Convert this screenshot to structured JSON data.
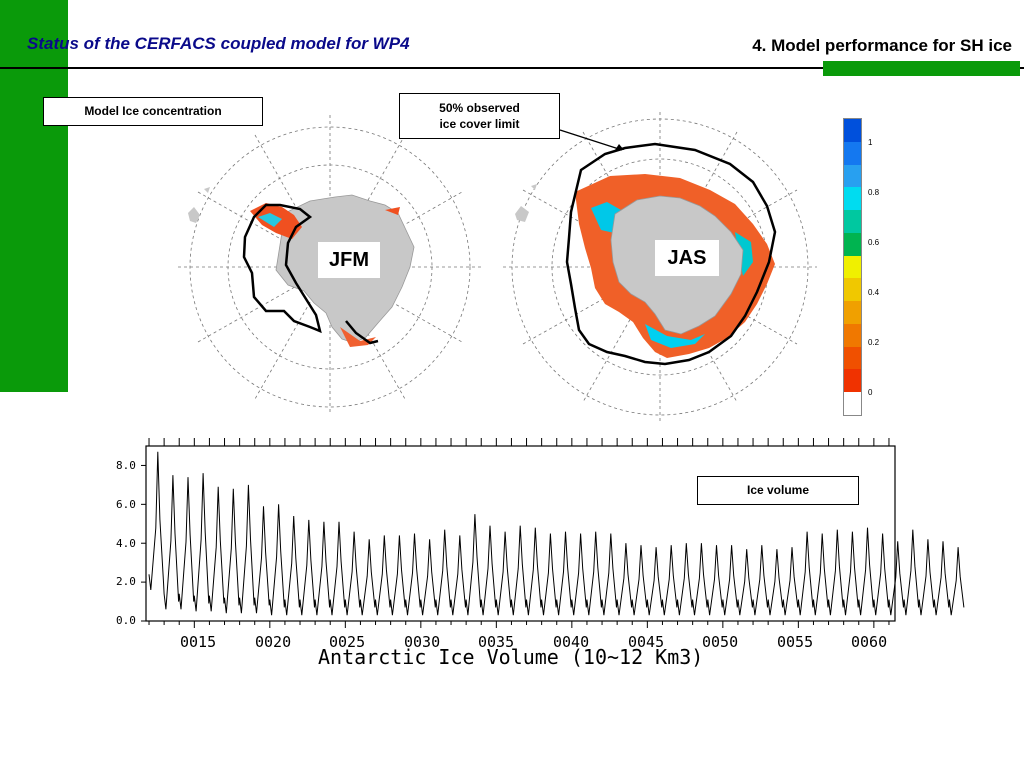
{
  "header": {
    "title": "Status of the CERFACS coupled model for WP4",
    "section": "4. Model performance for SH ice"
  },
  "maps": {
    "panel_label": "Model Ice concentration",
    "annotation_line1": "50% observed",
    "annotation_line2": "ice cover limit",
    "left_season": "JFM",
    "right_season": "JAS"
  },
  "colorbar": {
    "colors": [
      "#0050dc",
      "#1478f0",
      "#28a0f0",
      "#00dcf0",
      "#00c8a0",
      "#00b450",
      "#f0f000",
      "#f0c800",
      "#f0a000",
      "#f07800",
      "#f05000",
      "#f03200",
      "#ffffff"
    ],
    "tick_labels": [
      "1",
      "0.8",
      "0.6",
      "0.4",
      "0.2",
      "0"
    ]
  },
  "chart_data": {
    "type": "line",
    "title": "",
    "xlabel": "Antarctic Ice Volume (10~12 Km3)",
    "ylabel": "",
    "legend_label": "Ice volume",
    "x_tick_labels": [
      "0015",
      "0020",
      "0025",
      "0030",
      "0035",
      "0040",
      "0045",
      "0050",
      "0055",
      "0060"
    ],
    "y_tick_labels": [
      "0.0",
      "2.0",
      "4.0",
      "6.0",
      "8.0"
    ],
    "xlim": [
      11.8,
      61.4
    ],
    "ylim": [
      0,
      9
    ],
    "x_start_year": 12,
    "annual_max": [
      8.7,
      7.5,
      7.4,
      7.6,
      6.9,
      6.8,
      7.0,
      5.9,
      6.0,
      5.4,
      5.2,
      5.1,
      5.1,
      4.6,
      4.2,
      4.4,
      4.4,
      4.5,
      4.2,
      4.7,
      4.4,
      5.5,
      4.9,
      4.6,
      4.9,
      4.8,
      4.5,
      4.6,
      4.5,
      4.6,
      4.5,
      4.0,
      3.9,
      3.8,
      3.9,
      4.0,
      4.0,
      3.9,
      3.9,
      3.7,
      3.9,
      3.7,
      3.8,
      4.6,
      4.5,
      4.7,
      4.6,
      4.8,
      4.5,
      4.1,
      4.7,
      4.2,
      4.1,
      3.8
    ]
  }
}
